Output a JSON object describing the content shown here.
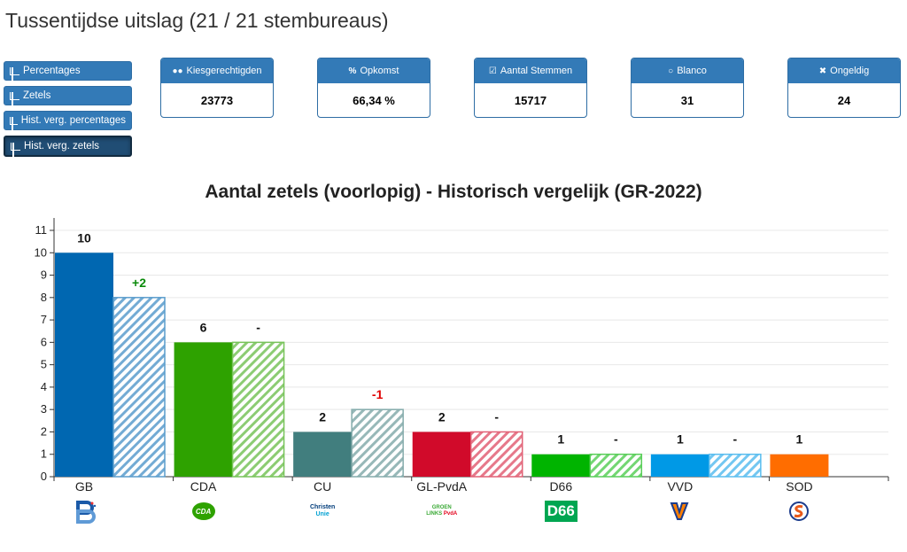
{
  "page": {
    "title": "Tussentijdse uitslag (21 / 21 stembureaus)"
  },
  "nav": {
    "buttons": [
      {
        "label": "Percentages",
        "active": false
      },
      {
        "label": "Zetels",
        "active": false
      },
      {
        "label": "Hist. verg. percentages",
        "active": false
      },
      {
        "label": "Hist. verg. zetels",
        "active": true
      }
    ]
  },
  "stats": [
    {
      "label": "Kiesgerechtigden",
      "value": "23773",
      "icon": "users-icon"
    },
    {
      "label": "Opkomst",
      "value": "66,34 %",
      "icon": "percent-icon"
    },
    {
      "label": "Aantal Stemmen",
      "value": "15717",
      "icon": "check-square-icon"
    },
    {
      "label": "Blanco",
      "value": "31",
      "icon": "circle-icon"
    },
    {
      "label": "Ongeldig",
      "value": "24",
      "icon": "x-icon"
    }
  ],
  "chart_data": {
    "type": "bar",
    "title": "Aantal zetels (voorlopig) - Historisch vergelijk (GR-2022)",
    "categories": [
      "GB",
      "CDA",
      "CU",
      "GL-PvdA",
      "D66",
      "VVD",
      "SOD"
    ],
    "series": [
      {
        "name": "Voorlopig",
        "values": [
          10,
          6,
          2,
          2,
          1,
          1,
          1
        ],
        "style": "solid"
      },
      {
        "name": "GR-2022",
        "values": [
          8,
          6,
          3,
          2,
          1,
          1,
          null
        ],
        "style": "hatched"
      }
    ],
    "value_labels": [
      "10",
      "6",
      "2",
      "2",
      "1",
      "1",
      "1"
    ],
    "diff_labels": [
      "+2",
      "-",
      "-1",
      "-",
      "-",
      "-",
      ""
    ],
    "colors": [
      "#0067b1",
      "#2ea200",
      "#417e7e",
      "#d10a2a",
      "#00b400",
      "#0099e6",
      "#ff6d00"
    ],
    "diff_colors": {
      "positive": "#0a8a0a",
      "negative": "#e00000",
      "neutral": "#111111"
    },
    "ylim": [
      0,
      11
    ],
    "yticks": [
      0,
      1,
      2,
      3,
      4,
      5,
      6,
      7,
      8,
      9,
      10,
      11
    ],
    "xlabel": "",
    "ylabel": "",
    "grid": true,
    "logos": [
      {
        "party": "GB",
        "text": ""
      },
      {
        "party": "CDA",
        "text": "CDA"
      },
      {
        "party": "CU",
        "text": "Christen Unie"
      },
      {
        "party": "GL-PvdA",
        "text": "GROENLINKS PvdA"
      },
      {
        "party": "D66",
        "text": "D66"
      },
      {
        "party": "VVD",
        "text": ""
      },
      {
        "party": "SOD",
        "text": ""
      }
    ]
  }
}
